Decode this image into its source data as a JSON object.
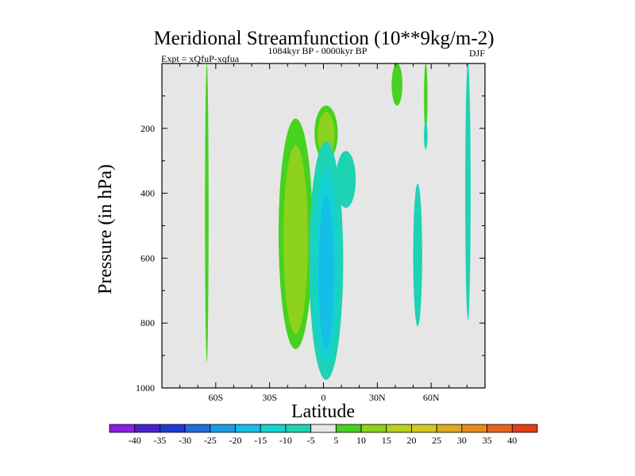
{
  "chart_data": {
    "type": "contour",
    "title": "Meridional Streamfunction (10**9kg/m-2)",
    "left_label": "Expt = xQfuP-xqfua",
    "center_label": "1084kyr BP - 0000kyr BP",
    "right_label": "DJF",
    "xlabel": "Latitude",
    "ylabel": "Pressure (in hPa)",
    "xlim": [
      -90,
      90
    ],
    "ylim": [
      1000,
      0
    ],
    "x_ticks": [
      {
        "value": -60,
        "label": "60S"
      },
      {
        "value": -30,
        "label": "30S"
      },
      {
        "value": 0,
        "label": "0"
      },
      {
        "value": 30,
        "label": "30N"
      },
      {
        "value": 60,
        "label": "60N"
      }
    ],
    "y_ticks": [
      {
        "value": 200,
        "label": "200"
      },
      {
        "value": 400,
        "label": "400"
      },
      {
        "value": 600,
        "label": "600"
      },
      {
        "value": 800,
        "label": "800"
      },
      {
        "value": 1000,
        "label": "1000"
      }
    ],
    "contour_levels": [
      -40,
      -35,
      -30,
      -25,
      -20,
      -15,
      -10,
      -5,
      5,
      10,
      15,
      20,
      25,
      30,
      35,
      40
    ],
    "colorbar_colors": [
      "#8a1ee6",
      "#4b1ed2",
      "#1e3cd2",
      "#1e6edc",
      "#1e9be6",
      "#14bee6",
      "#14d2d2",
      "#1ed2b4",
      "#e6e6e6",
      "#46d21e",
      "#8cd21e",
      "#b4d21e",
      "#d2c81e",
      "#dcaa1e",
      "#e68c1e",
      "#e6641e",
      "#e63c14"
    ],
    "missing_color": "#e6e6e6",
    "features": [
      {
        "name": "band-65S",
        "sign": "positive",
        "max_value": 5,
        "lat": [
          -66,
          -64
        ],
        "p": [
          0,
          920
        ]
      },
      {
        "name": "cell-15S",
        "sign": "positive",
        "max_value": 10,
        "lat": [
          -25,
          -6
        ],
        "p": [
          170,
          880
        ]
      },
      {
        "name": "cell-equator-upper",
        "sign": "positive",
        "max_value": 10,
        "lat": [
          -5,
          8
        ],
        "p": [
          130,
          300
        ]
      },
      {
        "name": "cell-equator-lower",
        "sign": "negative",
        "min_value": -15,
        "lat": [
          -8,
          11
        ],
        "p": [
          240,
          975
        ]
      },
      {
        "name": "cell-10N-upper",
        "sign": "negative",
        "min_value": -5,
        "lat": [
          7,
          18
        ],
        "p": [
          270,
          445
        ]
      },
      {
        "name": "band-40N",
        "sign": "positive",
        "max_value": 5,
        "lat": [
          38,
          44
        ],
        "p": [
          0,
          130
        ]
      },
      {
        "name": "band-55N-upper",
        "sign": "positive",
        "max_value": 5,
        "lat": [
          56,
          58
        ],
        "p": [
          0,
          210
        ]
      },
      {
        "name": "band-55N-lower",
        "sign": "negative",
        "min_value": -5,
        "lat": [
          56,
          58
        ],
        "p": [
          180,
          265
        ]
      },
      {
        "name": "band-52N",
        "sign": "negative",
        "min_value": -5,
        "lat": [
          50,
          55
        ],
        "p": [
          370,
          810
        ]
      },
      {
        "name": "band-80N",
        "sign": "negative",
        "min_value": -5,
        "lat": [
          79,
          82
        ],
        "p": [
          0,
          790
        ]
      }
    ]
  }
}
